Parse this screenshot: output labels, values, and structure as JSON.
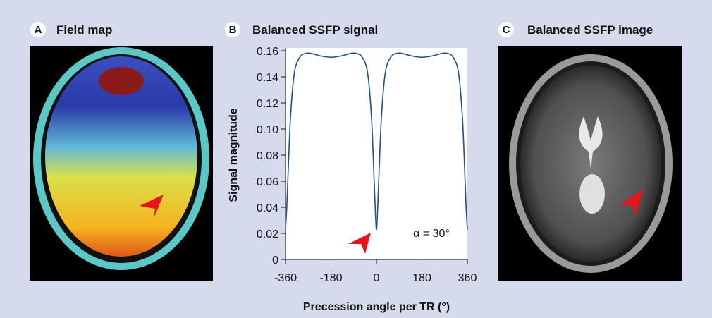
{
  "panels": [
    {
      "letter": "A",
      "title": "Field map"
    },
    {
      "letter": "B"
    },
    {
      "letter": "C",
      "title": "Balanced SSFP image"
    }
  ],
  "chart_data": {
    "type": "line",
    "title": "Balanced SSFP signal",
    "x_label": "Precession angle per TR (°)",
    "y_label": "Signal magnitude",
    "annotation": "α = 30°",
    "color": "#1f4e8c",
    "x": [
      -360,
      -355,
      -350,
      -345,
      -340,
      -330,
      -320,
      -300,
      -280,
      -260,
      -220,
      -180,
      -140,
      -100,
      -80,
      -60,
      -40,
      -30,
      -20,
      -15,
      -10,
      -5,
      0,
      5,
      10,
      15,
      20,
      30,
      40,
      60,
      80,
      100,
      140,
      180,
      220,
      260,
      280,
      300,
      320,
      330,
      340,
      345,
      350,
      355,
      360
    ],
    "values": [
      0.023,
      0.04,
      0.065,
      0.09,
      0.11,
      0.135,
      0.148,
      0.156,
      0.158,
      0.158,
      0.156,
      0.155,
      0.156,
      0.158,
      0.158,
      0.156,
      0.148,
      0.135,
      0.11,
      0.09,
      0.065,
      0.04,
      0.023,
      0.04,
      0.065,
      0.09,
      0.11,
      0.135,
      0.148,
      0.156,
      0.158,
      0.158,
      0.156,
      0.155,
      0.156,
      0.158,
      0.158,
      0.156,
      0.148,
      0.135,
      0.11,
      0.09,
      0.065,
      0.04,
      0.023
    ],
    "xlim": [
      -360,
      360
    ],
    "xticks": [
      -360,
      -180,
      0,
      180,
      360
    ],
    "ylim": [
      0,
      0.16
    ],
    "yticks": [
      0,
      0.02,
      0.04,
      0.06,
      0.08,
      {
        "value": 0.1,
        "label": "0.10"
      },
      0.12,
      0.14,
      0.16
    ]
  }
}
